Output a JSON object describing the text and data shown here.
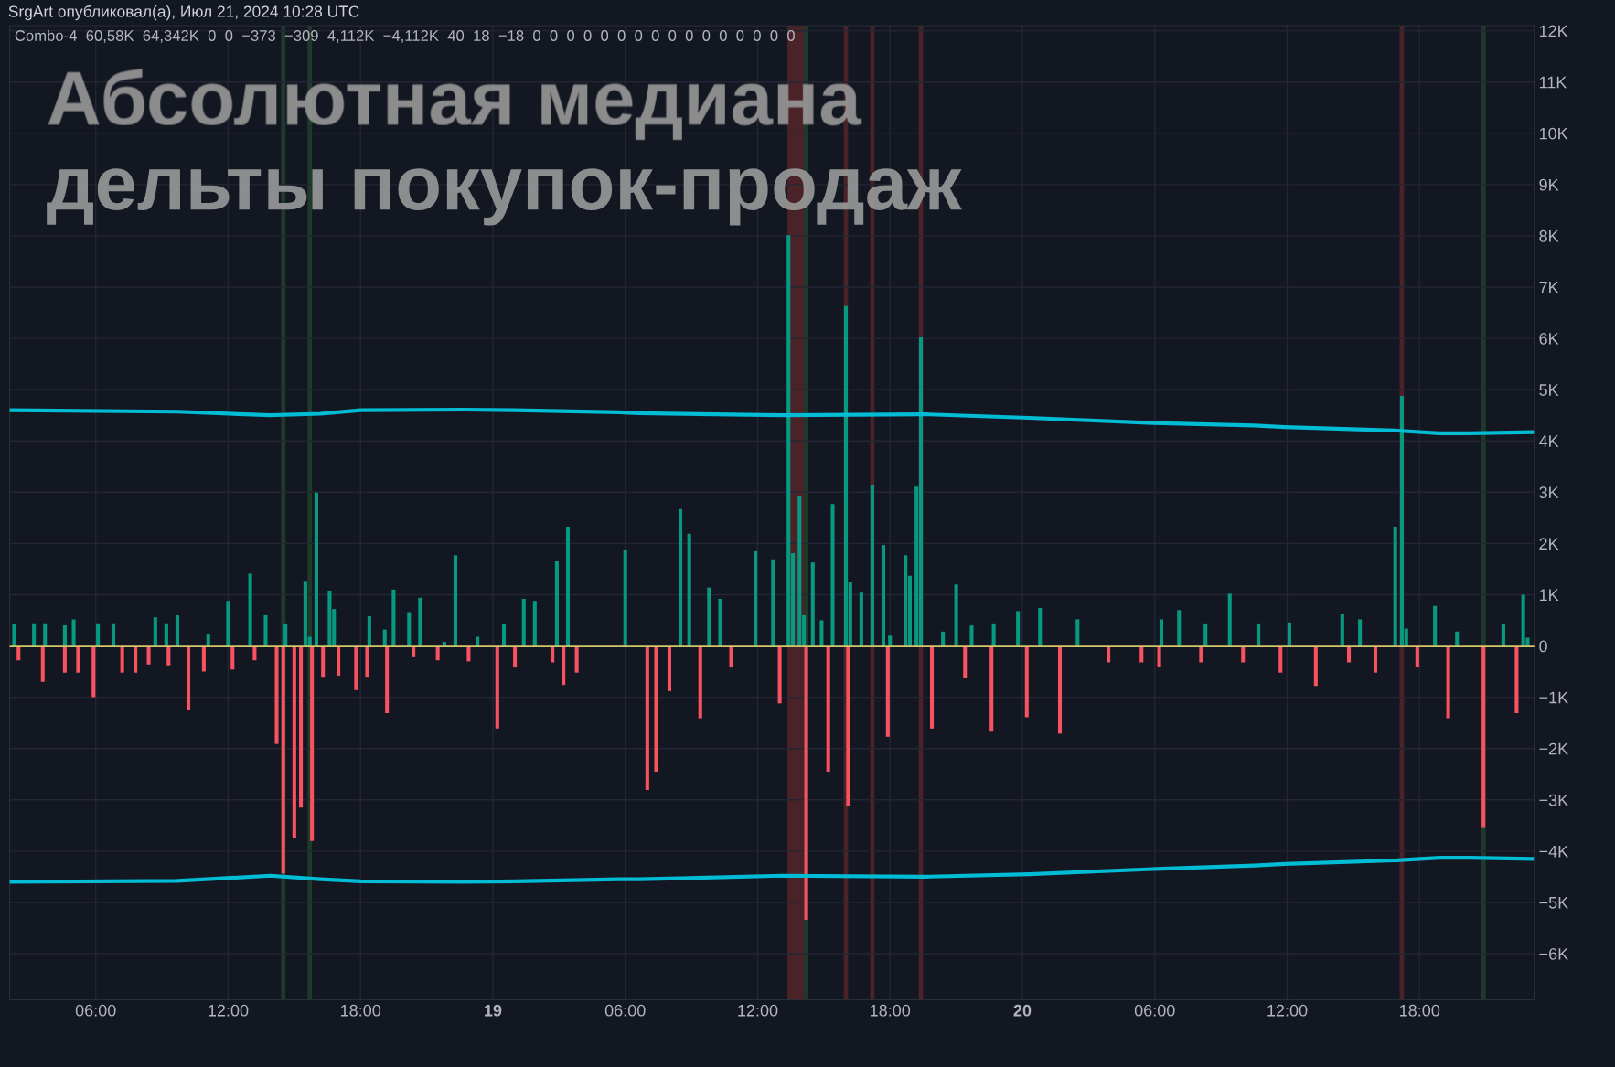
{
  "chart_data": {
    "type": "bar",
    "title": "Абсолютная медиана\nдельты покупок-продаж",
    "annotations": [
      "SrgArt опубликовал(а), Июл 21, 2024 10:28 UTC",
      "Combo-4  60,58K  64,342K  0  0  −373  −309  4,112K  −4,112K  40  18  −18  0  0  0  0  0  0  0  0  0  0  0  0  0  0  0  0"
    ],
    "xlim": [
      "2024-07-18T02:06",
      "2024-07-20T23:12"
    ],
    "ylim": [
      -6900,
      12100
    ],
    "xticks": [
      {
        "value": "2024-07-18T06:00",
        "label": "06:00"
      },
      {
        "value": "2024-07-18T12:00",
        "label": "12:00"
      },
      {
        "value": "2024-07-18T18:00",
        "label": "18:00"
      },
      {
        "value": "2024-07-19T00:00",
        "label": "19"
      },
      {
        "value": "2024-07-19T06:00",
        "label": "06:00"
      },
      {
        "value": "2024-07-19T12:00",
        "label": "12:00"
      },
      {
        "value": "2024-07-19T18:00",
        "label": "18:00"
      },
      {
        "value": "2024-07-20T00:00",
        "label": "20"
      },
      {
        "value": "2024-07-20T06:00",
        "label": "06:00"
      },
      {
        "value": "2024-07-20T12:00",
        "label": "12:00"
      },
      {
        "value": "2024-07-20T18:00",
        "label": "18:00"
      }
    ],
    "yticks": [
      {
        "value": -6000,
        "label": "−6K"
      },
      {
        "value": -5000,
        "label": "−5K"
      },
      {
        "value": -4000,
        "label": "−4K"
      },
      {
        "value": -3000,
        "label": "−3K"
      },
      {
        "value": -2000,
        "label": "−2K"
      },
      {
        "value": -1000,
        "label": "−1K"
      },
      0,
      {
        "value": 1000,
        "label": "1K"
      },
      {
        "value": 2000,
        "label": "2K"
      },
      {
        "value": 3000,
        "label": "3K"
      },
      {
        "value": 4000,
        "label": "4K"
      },
      {
        "value": 5000,
        "label": "5K"
      },
      {
        "value": 6000,
        "label": "6K"
      },
      {
        "value": 7000,
        "label": "7K"
      },
      {
        "value": 8000,
        "label": "8K"
      },
      {
        "value": 9000,
        "label": "9K"
      },
      {
        "value": 10000,
        "label": "10K"
      },
      {
        "value": 11000,
        "label": "11K"
      },
      {
        "value": 12000,
        "label": "12K"
      }
    ],
    "grid": true,
    "bands": [
      {
        "axis": "x",
        "from": "2024-07-18T14:24",
        "to": "2024-07-18T14:36",
        "color": "#1f3a2a"
      },
      {
        "axis": "x",
        "from": "2024-07-18T15:36",
        "to": "2024-07-18T15:48",
        "color": "#1f3a2a"
      },
      {
        "axis": "x",
        "from": "2024-07-19T14:06",
        "to": "2024-07-19T14:18",
        "color": "#1f3a2a"
      },
      {
        "axis": "x",
        "from": "2024-07-20T20:48",
        "to": "2024-07-20T21:00",
        "color": "#1f3a2a"
      },
      {
        "axis": "x",
        "from": "2024-07-19T13:21",
        "to": "2024-07-19T14:06",
        "color": "#4a2329"
      },
      {
        "axis": "x",
        "from": "2024-07-19T15:54",
        "to": "2024-07-19T16:06",
        "color": "#4a2329"
      },
      {
        "axis": "x",
        "from": "2024-07-19T17:06",
        "to": "2024-07-19T17:18",
        "color": "#4a2329"
      },
      {
        "axis": "x",
        "from": "2024-07-19T19:18",
        "to": "2024-07-19T19:30",
        "color": "#4a2329"
      },
      {
        "axis": "x",
        "from": "2024-07-20T17:06",
        "to": "2024-07-20T17:18",
        "color": "#4a2329"
      }
    ],
    "ref_lines": [
      {
        "axis": "y",
        "value": 0,
        "color": "#d4c86a"
      }
    ],
    "series": [
      {
        "color": "#089981",
        "x": [
          "2024-07-18T02:18",
          "2024-07-18T03:12",
          "2024-07-18T03:42",
          "2024-07-18T04:36",
          "2024-07-18T05:00",
          "2024-07-18T06:06",
          "2024-07-18T06:48",
          "2024-07-18T08:42",
          "2024-07-18T09:12",
          "2024-07-18T09:42",
          "2024-07-18T11:06",
          "2024-07-18T12:00",
          "2024-07-18T13:00",
          "2024-07-18T13:42",
          "2024-07-18T14:36",
          "2024-07-18T15:30",
          "2024-07-18T15:42",
          "2024-07-18T16:00",
          "2024-07-18T16:36",
          "2024-07-18T16:48",
          "2024-07-18T18:24",
          "2024-07-18T19:06",
          "2024-07-18T19:30",
          "2024-07-18T20:12",
          "2024-07-18T20:42",
          "2024-07-18T21:48",
          "2024-07-18T22:18",
          "2024-07-18T23:18",
          "2024-07-19T00:30",
          "2024-07-19T01:24",
          "2024-07-19T01:54",
          "2024-07-19T02:54",
          "2024-07-19T03:24",
          "2024-07-19T06:00",
          "2024-07-19T08:30",
          "2024-07-19T08:54",
          "2024-07-19T09:48",
          "2024-07-19T10:18",
          "2024-07-19T11:54",
          "2024-07-19T12:42",
          "2024-07-19T13:24",
          "2024-07-19T13:36",
          "2024-07-19T13:54",
          "2024-07-19T14:06",
          "2024-07-19T14:30",
          "2024-07-19T14:54",
          "2024-07-19T15:24",
          "2024-07-19T16:00",
          "2024-07-19T16:12",
          "2024-07-19T16:42",
          "2024-07-19T17:12",
          "2024-07-19T17:42",
          "2024-07-19T18:00",
          "2024-07-19T18:42",
          "2024-07-19T18:54",
          "2024-07-19T19:12",
          "2024-07-19T19:24",
          "2024-07-19T20:24",
          "2024-07-19T21:00",
          "2024-07-19T21:42",
          "2024-07-19T22:42",
          "2024-07-19T23:48",
          "2024-07-20T00:48",
          "2024-07-20T02:30",
          "2024-07-20T06:18",
          "2024-07-20T07:06",
          "2024-07-20T08:18",
          "2024-07-20T09:24",
          "2024-07-20T10:42",
          "2024-07-20T12:06",
          "2024-07-20T14:30",
          "2024-07-20T15:18",
          "2024-07-20T16:54",
          "2024-07-20T17:12",
          "2024-07-20T17:24",
          "2024-07-20T18:42",
          "2024-07-20T19:42",
          "2024-07-20T21:48",
          "2024-07-20T22:42",
          "2024-07-20T22:54"
        ],
        "values": [
          420,
          440,
          440,
          400,
          520,
          440,
          440,
          560,
          440,
          600,
          240,
          880,
          1410,
          600,
          440,
          1270,
          180,
          2990,
          1080,
          720,
          580,
          320,
          1100,
          660,
          940,
          80,
          1770,
          180,
          440,
          920,
          880,
          1650,
          2330,
          1870,
          2670,
          2190,
          1140,
          920,
          1850,
          1690,
          8010,
          1810,
          2930,
          600,
          1630,
          500,
          2770,
          6630,
          1240,
          1040,
          3150,
          1970,
          200,
          1770,
          1370,
          3110,
          6020,
          280,
          1200,
          400,
          440,
          680,
          740,
          520,
          520,
          700,
          440,
          1020,
          440,
          460,
          620,
          520,
          2330,
          4880,
          340,
          780,
          280,
          420,
          1000,
          160
        ]
      },
      {
        "color": "#f7525f",
        "x": [
          "2024-07-18T02:30",
          "2024-07-18T03:36",
          "2024-07-18T04:36",
          "2024-07-18T05:12",
          "2024-07-18T05:54",
          "2024-07-18T07:12",
          "2024-07-18T07:48",
          "2024-07-18T08:24",
          "2024-07-18T09:18",
          "2024-07-18T10:12",
          "2024-07-18T10:54",
          "2024-07-18T12:12",
          "2024-07-18T13:12",
          "2024-07-18T14:12",
          "2024-07-18T14:30",
          "2024-07-18T15:00",
          "2024-07-18T15:18",
          "2024-07-18T15:48",
          "2024-07-18T16:18",
          "2024-07-18T17:00",
          "2024-07-18T17:48",
          "2024-07-18T18:18",
          "2024-07-18T19:12",
          "2024-07-18T20:24",
          "2024-07-18T21:30",
          "2024-07-18T22:54",
          "2024-07-19T00:12",
          "2024-07-19T01:00",
          "2024-07-19T02:42",
          "2024-07-19T03:12",
          "2024-07-19T03:48",
          "2024-07-19T07:00",
          "2024-07-19T07:24",
          "2024-07-19T08:00",
          "2024-07-19T09:24",
          "2024-07-19T10:48",
          "2024-07-19T13:00",
          "2024-07-19T14:12",
          "2024-07-19T15:12",
          "2024-07-19T16:06",
          "2024-07-19T17:54",
          "2024-07-19T19:54",
          "2024-07-19T21:24",
          "2024-07-19T22:36",
          "2024-07-20T00:12",
          "2024-07-20T01:42",
          "2024-07-20T03:54",
          "2024-07-20T05:24",
          "2024-07-20T06:12",
          "2024-07-20T08:06",
          "2024-07-20T10:00",
          "2024-07-20T11:42",
          "2024-07-20T13:18",
          "2024-07-20T14:48",
          "2024-07-20T16:00",
          "2024-07-20T17:54",
          "2024-07-20T19:18",
          "2024-07-20T20:54",
          "2024-07-20T22:24"
        ],
        "values": [
          -280,
          -700,
          -520,
          -520,
          -1000,
          -520,
          -520,
          -360,
          -380,
          -1250,
          -500,
          -460,
          -280,
          -1910,
          -4440,
          -3750,
          -3150,
          -3800,
          -600,
          -580,
          -860,
          -600,
          -1310,
          -220,
          -280,
          -300,
          -1610,
          -420,
          -320,
          -760,
          -520,
          -2810,
          -2450,
          -880,
          -1410,
          -420,
          -1120,
          -5340,
          -2450,
          -3130,
          -1770,
          -1610,
          -620,
          -1670,
          -1390,
          -1710,
          -320,
          -320,
          -400,
          -320,
          -320,
          -520,
          -780,
          -320,
          -520,
          -420,
          -1410,
          -3550,
          -1310
        ]
      },
      {
        "type": "line",
        "color": "#00bcd4",
        "x": [
          "2024-07-18T02:06",
          "2024-07-18T09:42",
          "2024-07-18T13:54",
          "2024-07-18T16:12",
          "2024-07-18T18:00",
          "2024-07-18T22:42",
          "2024-07-19T01:00",
          "2024-07-19T05:42",
          "2024-07-19T06:36",
          "2024-07-19T13:06",
          "2024-07-19T19:36",
          "2024-07-20T00:18",
          "2024-07-20T05:54",
          "2024-07-20T10:30",
          "2024-07-20T11:54",
          "2024-07-20T17:00",
          "2024-07-20T18:54",
          "2024-07-20T20:18",
          "2024-07-20T23:06"
        ],
        "values": [
          4600,
          4570,
          4500,
          4530,
          4600,
          4610,
          4600,
          4560,
          4540,
          4500,
          4520,
          4450,
          4350,
          4300,
          4270,
          4200,
          4150,
          4150,
          4170
        ]
      },
      {
        "type": "line",
        "color": "#00bcd4",
        "x": [
          "2024-07-18T02:06",
          "2024-07-18T09:42",
          "2024-07-18T13:54",
          "2024-07-18T16:12",
          "2024-07-18T18:00",
          "2024-07-18T22:42",
          "2024-07-19T01:00",
          "2024-07-19T05:42",
          "2024-07-19T06:36",
          "2024-07-19T13:06",
          "2024-07-19T19:36",
          "2024-07-20T00:18",
          "2024-07-20T05:54",
          "2024-07-20T10:30",
          "2024-07-20T11:54",
          "2024-07-20T17:00",
          "2024-07-20T18:54",
          "2024-07-20T20:18",
          "2024-07-20T23:06"
        ],
        "values": [
          -4600,
          -4580,
          -4480,
          -4550,
          -4590,
          -4600,
          -4590,
          -4550,
          -4550,
          -4480,
          -4500,
          -4450,
          -4350,
          -4280,
          -4250,
          -4180,
          -4130,
          -4130,
          -4150
        ]
      }
    ]
  }
}
